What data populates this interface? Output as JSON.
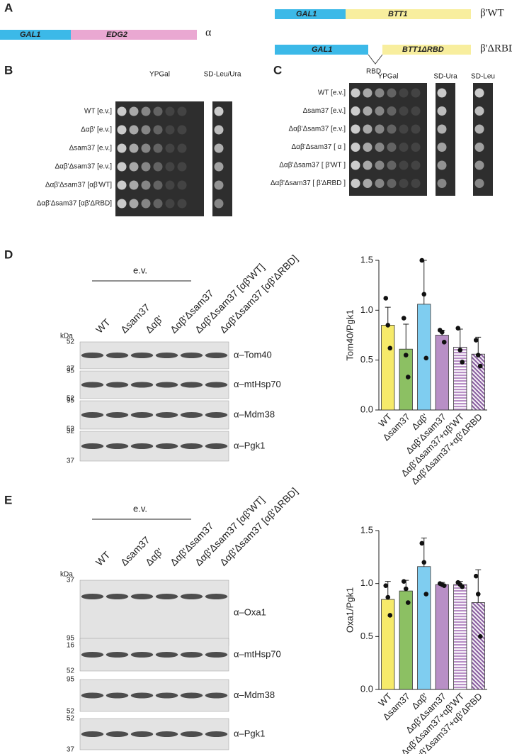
{
  "panel_letters": [
    "A",
    "B",
    "C",
    "D",
    "E"
  ],
  "constructs": {
    "alpha": {
      "promoter": "GAL1",
      "gene": "EDG2",
      "name": "α"
    },
    "beta_wt": {
      "promoter": "GAL1",
      "gene": "BTT1",
      "name": "β'WT"
    },
    "beta_drbd": {
      "promoter": "GAL1",
      "gene": "BTT1ΔRBD",
      "name": "β'ΔRBD",
      "deletion": "RBD"
    }
  },
  "spot_assay_b": {
    "media": [
      "YPGal",
      "SD-Leu/Ura"
    ],
    "strains": [
      "WT [e.v.]",
      "Δαβ' [e.v.]",
      "Δsam37 [e.v.]",
      "Δαβ'Δsam37 [e.v.]",
      "Δαβ'Δsam37 [αβ'WT]",
      "Δαβ'Δsam37 [αβ'ΔRBD]"
    ]
  },
  "spot_assay_c": {
    "media": [
      "YPGal",
      "SD-Ura",
      "SD-Leu"
    ],
    "strains": [
      "WT [e.v.]",
      "Δsam37 [e.v.]",
      "Δαβ'Δsam37 [e.v.]",
      "Δαβ'Δsam37 [ α ]",
      "Δαβ'Δsam37 [ β'WT ]",
      "Δαβ'Δsam37 [ β'ΔRBD ]"
    ]
  },
  "western_d": {
    "vector_label": "e.v.",
    "kda_label": "kDa",
    "lanes": [
      "WT",
      "Δsam37",
      "Δαβ'",
      "Δαβ'Δsam37",
      "Δαβ'Δsam37 [αβ'WT]",
      "Δαβ'Δsam37 [αβ'ΔRBD]"
    ],
    "blots": [
      {
        "antibody": "α–Tom40",
        "markers": [
          52,
          37
        ]
      },
      {
        "antibody": "α–mtHsp70",
        "markers": [
          95,
          52
        ]
      },
      {
        "antibody": "α–Mdm38",
        "markers": [
          95,
          52
        ]
      },
      {
        "antibody": "α–Pgk1",
        "markers": [
          52,
          37
        ]
      }
    ]
  },
  "western_e": {
    "vector_label": "e.v.",
    "kda_label": "kDa",
    "lanes": [
      "WT",
      "Δsam37",
      "Δαβ'",
      "Δαβ'Δsam37",
      "Δαβ'Δsam37 [αβ'WT]",
      "Δαβ'Δsam37 [αβ'ΔRBD]"
    ],
    "blots": [
      {
        "antibody": "α–Oxa1",
        "markers": [
          37,
          16
        ]
      },
      {
        "antibody": "α–mtHsp70",
        "markers": [
          95,
          52
        ]
      },
      {
        "antibody": "α–Mdm38",
        "markers": [
          95,
          52
        ]
      },
      {
        "antibody": "α–Pgk1",
        "markers": [
          52,
          37
        ]
      }
    ]
  },
  "chart_data": [
    {
      "type": "bar",
      "y_label": "Tom40/Pgk1",
      "categories": [
        "WT",
        "Δsam37",
        "Δαβ'",
        "Δαβ'Δsam37",
        "Δαβ'Δsam37+αβ'WT",
        "Δαβ'Δsam37+αβ'ΔRBD"
      ],
      "values": [
        0.85,
        0.61,
        1.06,
        0.75,
        0.63,
        0.56
      ],
      "errors": [
        0.18,
        0.25,
        0.44,
        0.05,
        0.18,
        0.17
      ],
      "points": [
        [
          1.12,
          0.85,
          0.62
        ],
        [
          0.92,
          0.55,
          0.33
        ],
        [
          1.5,
          1.16,
          0.52
        ],
        [
          0.8,
          0.78,
          0.68
        ],
        [
          0.82,
          0.6,
          0.48
        ],
        [
          0.7,
          0.55,
          0.44
        ]
      ],
      "colors": [
        "#f6ea6a",
        "#8cc063",
        "#7fcdf0",
        "#b88fc6",
        "#b88fc6",
        "#8a5fa0"
      ],
      "patterns": [
        "none",
        "none",
        "none",
        "none",
        "horizontal",
        "diagonal"
      ],
      "ylim": [
        0,
        1.5
      ],
      "yticks": [
        {
          "value": 0,
          "label": "0.0"
        },
        0.5,
        {
          "value": 1,
          "label": "1.0"
        },
        1.5
      ]
    },
    {
      "type": "bar",
      "y_label": "Oxa1/Pgk1",
      "categories": [
        "WT",
        "Δsam37",
        "Δαβ'",
        "Δαβ'Δsam37",
        "Δαβ'Δsam37+αβ'WT",
        "Δαβ'Δsam37+αβ'ΔRBD"
      ],
      "values": [
        0.85,
        0.93,
        1.16,
        0.99,
        0.99,
        0.82
      ],
      "errors": [
        0.17,
        0.1,
        0.27,
        0.02,
        0.03,
        0.31
      ],
      "points": [
        [
          0.98,
          0.87,
          0.7
        ],
        [
          1.02,
          0.95,
          0.82
        ],
        [
          1.38,
          1.2,
          0.9
        ],
        [
          1.0,
          0.99,
          0.98
        ],
        [
          1.01,
          0.99,
          0.97
        ],
        [
          1.07,
          0.9,
          0.5
        ]
      ],
      "colors": [
        "#f6ea6a",
        "#8cc063",
        "#7fcdf0",
        "#b88fc6",
        "#b88fc6",
        "#8a5fa0"
      ],
      "patterns": [
        "none",
        "none",
        "none",
        "none",
        "horizontal",
        "diagonal"
      ],
      "ylim": [
        0,
        1.5
      ],
      "yticks": [
        {
          "value": 0,
          "label": "0.0"
        },
        0.5,
        {
          "value": 1,
          "label": "1.0"
        },
        1.5
      ]
    }
  ]
}
